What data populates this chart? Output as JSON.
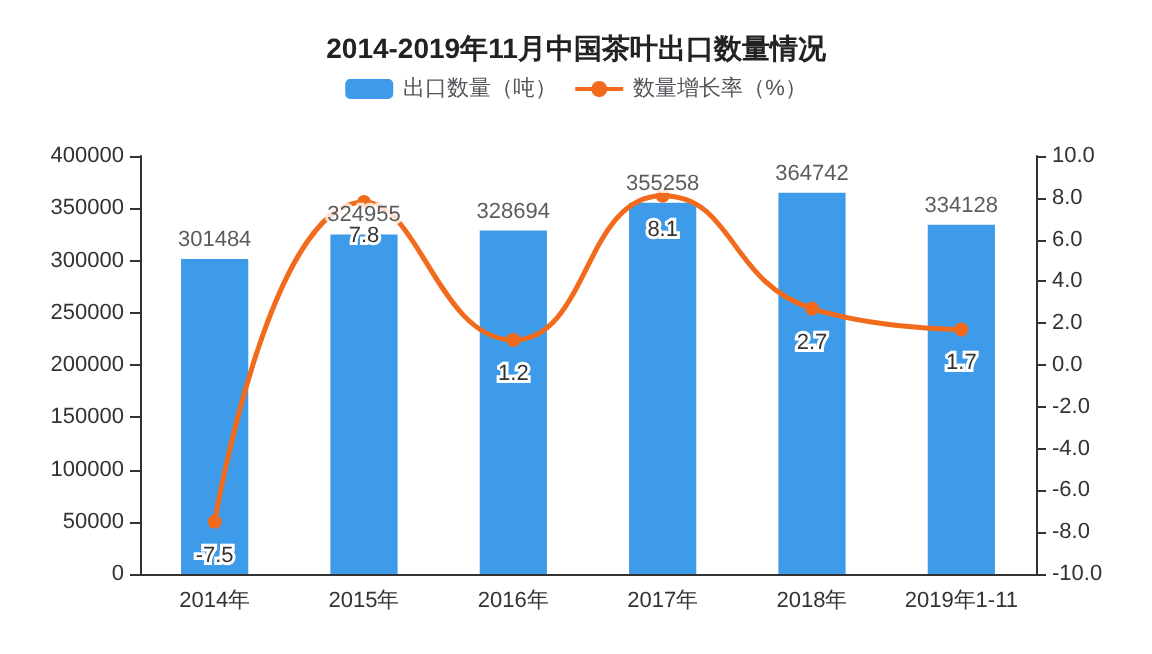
{
  "chart_data": {
    "type": "bar",
    "title": "2014-2019年11月中国茶叶出口数量情况",
    "categories": [
      "2014年",
      "2015年",
      "2016年",
      "2017年",
      "2018年",
      "2019年1-11"
    ],
    "series": [
      {
        "name": "出口数量（吨）",
        "color": "#3d9be9",
        "values": [
          301484,
          324955,
          328694,
          355258,
          364742,
          334128
        ]
      },
      {
        "name": "数量增长率（%）",
        "type": "line",
        "axis": "y2",
        "color": "#f26b1d",
        "values": [
          -7.5,
          7.8,
          1.2,
          8.1,
          2.7,
          1.7
        ]
      }
    ],
    "ylim": [
      0,
      400000
    ],
    "yticks": [
      0,
      50000,
      100000,
      150000,
      200000,
      250000,
      300000,
      350000,
      400000
    ],
    "y2lim": [
      -10,
      10
    ],
    "y2ticks": [
      {
        "value": -10,
        "label": "-10.0"
      },
      {
        "value": -8,
        "label": "-8.0"
      },
      {
        "value": -6,
        "label": "-6.0"
      },
      {
        "value": -4,
        "label": "-4.0"
      },
      {
        "value": -2,
        "label": "-2.0"
      },
      {
        "value": 0,
        "label": "0.0"
      },
      {
        "value": 2,
        "label": "2.0"
      },
      {
        "value": 4,
        "label": "4.0"
      },
      {
        "value": 6,
        "label": "6.0"
      },
      {
        "value": 8,
        "label": "8.0"
      },
      {
        "value": 10,
        "label": "10.0"
      }
    ],
    "data_labels": true,
    "legend": "top",
    "marker": "circle",
    "line_style": "solid",
    "grid": false
  }
}
